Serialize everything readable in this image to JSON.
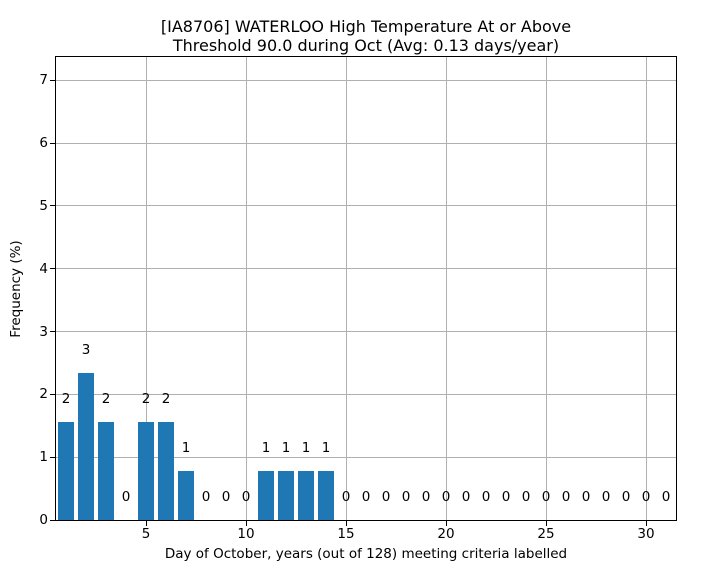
{
  "figure": {
    "title_lines": {
      "0": "[IA8706] WATERLOO High Temperature At or Above",
      "1": "Threshold 90.0 during Oct (Avg: 0.13 days/year)"
    },
    "xlabel": "Day of October, years (out of 128) meeting criteria labelled",
    "ylabel": "Frequency (%)"
  },
  "chart_data": {
    "type": "bar",
    "title": "[IA8706] WATERLOO High Temperature At or Above Threshold 90.0 during Oct (Avg: 0.13 days/year)",
    "station": "[IA8706] WATERLOO",
    "threshold": 90.0,
    "month": "Oct",
    "avg_days_per_year": 0.13,
    "total_years": 128,
    "xlabel": "Day of October, years (out of 128) meeting criteria labelled",
    "ylabel": "Frequency (%)",
    "x": [
      1,
      2,
      3,
      4,
      5,
      6,
      7,
      8,
      9,
      10,
      11,
      12,
      13,
      14,
      15,
      16,
      17,
      18,
      19,
      20,
      21,
      22,
      23,
      24,
      25,
      26,
      27,
      28,
      29,
      30,
      31
    ],
    "counts": [
      2,
      3,
      2,
      0,
      2,
      2,
      1,
      0,
      0,
      0,
      1,
      1,
      1,
      1,
      0,
      0,
      0,
      0,
      0,
      0,
      0,
      0,
      0,
      0,
      0,
      0,
      0,
      0,
      0,
      0,
      0
    ],
    "frequencies_pct": [
      1.5625,
      2.34375,
      1.5625,
      0,
      1.5625,
      1.5625,
      0.78125,
      0,
      0,
      0,
      0.78125,
      0.78125,
      0.78125,
      0.78125,
      0,
      0,
      0,
      0,
      0,
      0,
      0,
      0,
      0,
      0,
      0,
      0,
      0,
      0,
      0,
      0,
      0
    ],
    "bar_value_labels": [
      "2",
      "3",
      "2",
      "0",
      "2",
      "2",
      "1",
      "0",
      "0",
      "0",
      "1",
      "1",
      "1",
      "1",
      "0",
      "0",
      "0",
      "0",
      "0",
      "0",
      "0",
      "0",
      "0",
      "0",
      "0",
      "0",
      "0",
      "0",
      "0",
      "0",
      "0"
    ],
    "xticks": [
      5,
      10,
      15,
      20,
      25,
      30
    ],
    "yticks": [
      0,
      1,
      2,
      3,
      4,
      5,
      6,
      7
    ],
    "xlim": [
      0.5,
      31.5
    ],
    "ylim": [
      0,
      7.37
    ],
    "bar_width_units": 0.8,
    "grid": true,
    "legend": null,
    "bar_color": "#1f77b4",
    "grid_color": "#b0b0b0",
    "text_color": "#000000",
    "background_color": "#ffffff"
  }
}
